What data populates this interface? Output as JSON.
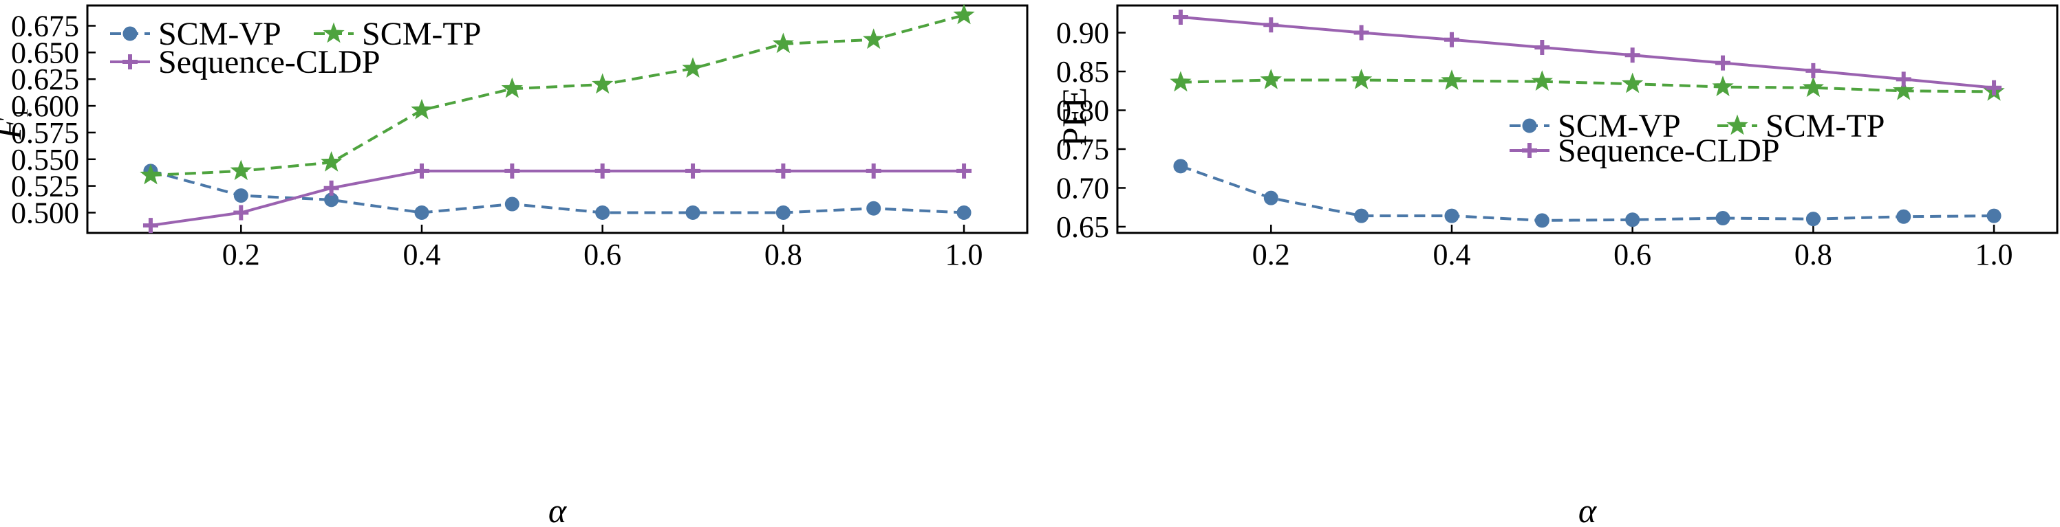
{
  "chart_data": [
    {
      "type": "line",
      "x": [
        0.1,
        0.2,
        0.3,
        0.4,
        0.5,
        0.6,
        0.7,
        0.8,
        0.9,
        1.0
      ],
      "xlabel": "α",
      "ylabel_main": "F",
      "ylabel_sub": "1",
      "xticks": [
        "0.2",
        "0.4",
        "0.6",
        "0.8",
        "1.0"
      ],
      "yticks": [
        "0.500",
        "0.525",
        "0.550",
        "0.575",
        "0.600",
        "0.625",
        "0.650",
        "0.675"
      ],
      "xlim": [
        0.03,
        1.07
      ],
      "ylim": [
        0.481,
        0.694
      ],
      "legend_position": "top-left",
      "series": [
        {
          "name": "SCM-VP",
          "values": [
            0.539,
            0.516,
            0.512,
            0.5,
            0.508,
            0.5,
            0.5,
            0.5,
            0.504,
            0.5
          ],
          "color": "#4b78a8",
          "marker": "circle",
          "dashed": true
        },
        {
          "name": "SCM-TP",
          "values": [
            0.535,
            0.539,
            0.547,
            0.596,
            0.616,
            0.62,
            0.635,
            0.658,
            0.662,
            0.685
          ],
          "color": "#4ea33e",
          "marker": "star",
          "dashed": true
        },
        {
          "name": "Sequence-CLDP",
          "values": [
            0.488,
            0.5,
            0.523,
            0.539,
            0.539,
            0.539,
            0.539,
            0.539,
            0.539,
            0.539
          ],
          "color": "#9a62b0",
          "marker": "plus",
          "dashed": false
        }
      ]
    },
    {
      "type": "line",
      "x": [
        0.1,
        0.2,
        0.3,
        0.4,
        0.5,
        0.6,
        0.7,
        0.8,
        0.9,
        1.0
      ],
      "xlabel": "α",
      "ylabel_main": "PFE",
      "ylabel_sub": "",
      "xticks": [
        "0.2",
        "0.4",
        "0.6",
        "0.8",
        "1.0"
      ],
      "yticks": [
        "0.65",
        "0.70",
        "0.75",
        "0.80",
        "0.85",
        "0.90"
      ],
      "xlim": [
        0.03,
        1.07
      ],
      "ylim": [
        0.642,
        0.935
      ],
      "legend_position": "center-right",
      "series": [
        {
          "name": "SCM-VP",
          "values": [
            0.728,
            0.687,
            0.664,
            0.664,
            0.658,
            0.659,
            0.661,
            0.66,
            0.663,
            0.664
          ],
          "color": "#4b78a8",
          "marker": "circle",
          "dashed": true
        },
        {
          "name": "SCM-TP",
          "values": [
            0.836,
            0.839,
            0.839,
            0.838,
            0.837,
            0.834,
            0.83,
            0.829,
            0.825,
            0.824
          ],
          "color": "#4ea33e",
          "marker": "star",
          "dashed": true
        },
        {
          "name": "Sequence-CLDP",
          "values": [
            0.92,
            0.91,
            0.9,
            0.891,
            0.881,
            0.871,
            0.861,
            0.851,
            0.84,
            0.829
          ],
          "color": "#9a62b0",
          "marker": "plus",
          "dashed": false
        }
      ]
    }
  ]
}
